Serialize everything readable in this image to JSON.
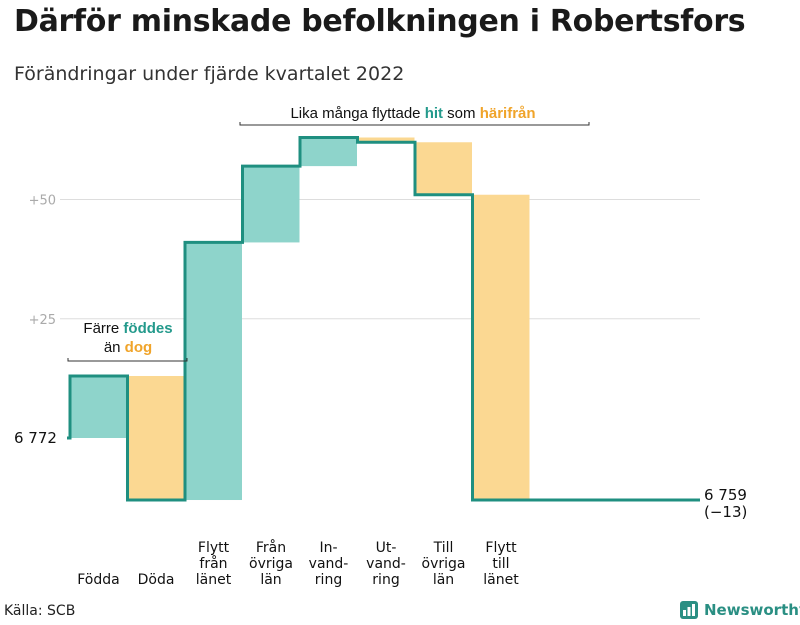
{
  "title": "Därför minskade befolkningen i Robertsfors",
  "subtitle": "Förändringar under fjärde kvartalet 2022",
  "source": "Källa: SCB",
  "brand": "Newsworthy",
  "chart_data": {
    "type": "waterfall",
    "start": {
      "value": 6772,
      "label": "6 772"
    },
    "end": {
      "value": 6759,
      "label": "6 759",
      "change": "(−13)"
    },
    "y_ticks": [
      {
        "value": 25,
        "label": "+25"
      },
      {
        "value": 50,
        "label": "+50"
      }
    ],
    "steps": [
      {
        "lines": [
          "Födda"
        ],
        "delta": 13,
        "type": "in"
      },
      {
        "lines": [
          "Döda"
        ],
        "delta": -26,
        "type": "out"
      },
      {
        "lines": [
          "Flytt",
          "från",
          "länet"
        ],
        "delta": 54,
        "type": "in"
      },
      {
        "lines": [
          "Från",
          "övriga",
          "län"
        ],
        "delta": 16,
        "type": "in"
      },
      {
        "lines": [
          "In-",
          "vand-",
          "ring"
        ],
        "delta": 6,
        "type": "in"
      },
      {
        "lines": [
          "Ut-",
          "vand-",
          "ring"
        ],
        "delta": -1,
        "type": "out"
      },
      {
        "lines": [
          "Till",
          "övriga",
          "län"
        ],
        "delta": -11,
        "type": "out"
      },
      {
        "lines": [
          "Flytt",
          "till",
          "länet"
        ],
        "delta": -64,
        "type": "out"
      }
    ],
    "annotations": [
      {
        "parts": [
          [
            "Färre ",
            "plain"
          ],
          [
            "föddes",
            "in"
          ]
        ],
        "parts2": [
          [
            "än ",
            "plain"
          ],
          [
            "dog",
            "out"
          ]
        ]
      },
      {
        "parts": [
          [
            "Lika många flyttade ",
            "plain"
          ],
          [
            "hit",
            "in"
          ],
          [
            " som ",
            "plain"
          ],
          [
            "härifrån",
            "out"
          ]
        ]
      }
    ],
    "colors": {
      "in_fill": "#8ed4cb",
      "out_fill": "#fbd892",
      "line": "#1f8f80",
      "in_text": "#249a8c",
      "out_text": "#f0a42a",
      "grid": "#dddddd",
      "tick": "#aaaaaa"
    }
  }
}
